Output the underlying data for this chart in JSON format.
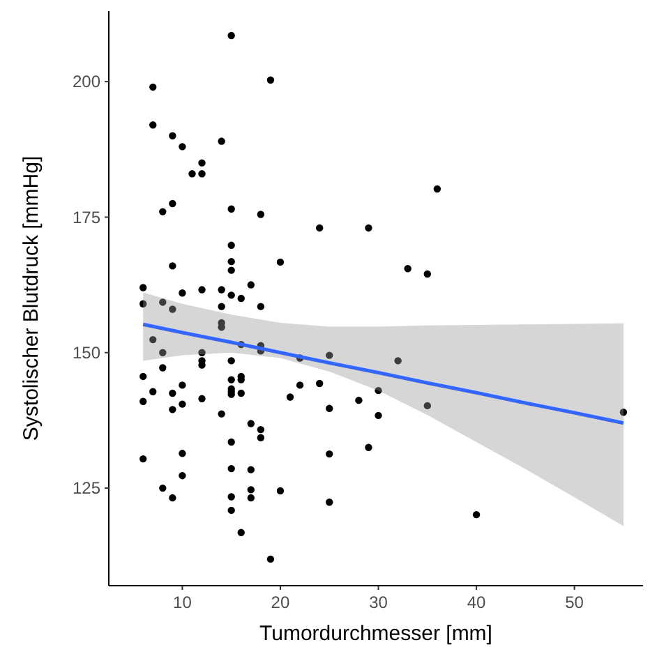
{
  "chart_data": {
    "type": "scatter",
    "xlabel": "Tumordurchmesser [mm]",
    "ylabel": "Systolischer Blutdruck [mmHg]",
    "xlim": [
      2.5,
      57
    ],
    "ylim": [
      107,
      213
    ],
    "xticks": [
      10,
      20,
      30,
      40,
      50
    ],
    "yticks": [
      125,
      150,
      175,
      200
    ],
    "grid": false,
    "marker": "circle",
    "series": [
      {
        "color": "#000000",
        "x": [
          15,
          7,
          19,
          7,
          9,
          10,
          14,
          12,
          11,
          12,
          9,
          8,
          15,
          18,
          24,
          15,
          15,
          15,
          20,
          9,
          6,
          17,
          10,
          12,
          14,
          15,
          16,
          6,
          8,
          9,
          14,
          18,
          14,
          14,
          7,
          8,
          12,
          12,
          12,
          16,
          18,
          18,
          15,
          8,
          6,
          7,
          6,
          9,
          9,
          10,
          10,
          12,
          15,
          15,
          15,
          15,
          16,
          16,
          16,
          14,
          17,
          18,
          18,
          15,
          6,
          10,
          10,
          15,
          17,
          8,
          9,
          15,
          17,
          17,
          20,
          15,
          16,
          19,
          21,
          22,
          22,
          24,
          25,
          25,
          25,
          25,
          28,
          30,
          30,
          32,
          35,
          29,
          40,
          55,
          36,
          29,
          33,
          35
        ],
        "values": [
          208.5,
          199,
          200.3,
          192,
          190,
          188,
          189,
          185,
          183,
          183,
          177.5,
          176,
          176.5,
          175.5,
          173,
          169.8,
          166.8,
          165.2,
          166.7,
          166,
          162,
          162.5,
          161,
          161.6,
          161.6,
          160.6,
          160,
          159,
          159.3,
          158,
          158.5,
          158.5,
          155.5,
          154.7,
          152.4,
          150,
          150,
          148.5,
          147.7,
          151.5,
          151.3,
          150.3,
          148.5,
          147.2,
          145.6,
          142.8,
          141,
          142.5,
          139.5,
          144,
          140.5,
          141.5,
          145,
          143.3,
          142.8,
          142.3,
          145.6,
          145,
          142.5,
          138.7,
          136.9,
          135.8,
          134.3,
          133.5,
          130.4,
          131.4,
          127.3,
          128.6,
          128.4,
          125,
          123.2,
          123.4,
          124.7,
          123.2,
          124.5,
          120.9,
          116.8,
          111.9,
          141.8,
          144,
          149,
          144.3,
          149.5,
          139.7,
          131.3,
          122.4,
          141.2,
          143,
          138.4,
          148.5,
          140.2,
          132.5,
          120.1,
          139,
          180.2,
          173,
          165.5,
          164.5
        ]
      },
      {
        "type": "line",
        "color": "#3366ff",
        "x": [
          6,
          10,
          15,
          20,
          25,
          30,
          35,
          40,
          45,
          50,
          55
        ],
        "values": [
          155.2,
          153.7,
          151.9,
          150.0,
          148.1,
          146.3,
          144.4,
          142.6,
          140.7,
          138.9,
          137.0
        ],
        "lower": [
          148.5,
          149.5,
          150,
          149,
          146.5,
          143,
          138.5,
          133.5,
          128.5,
          123.3,
          118
        ],
        "upper": [
          161.1,
          159,
          157,
          155.5,
          154.8,
          154.8,
          155,
          155.1,
          155.2,
          155.3,
          155.4
        ],
        "marker": "none",
        "line_style": "solid"
      }
    ]
  }
}
